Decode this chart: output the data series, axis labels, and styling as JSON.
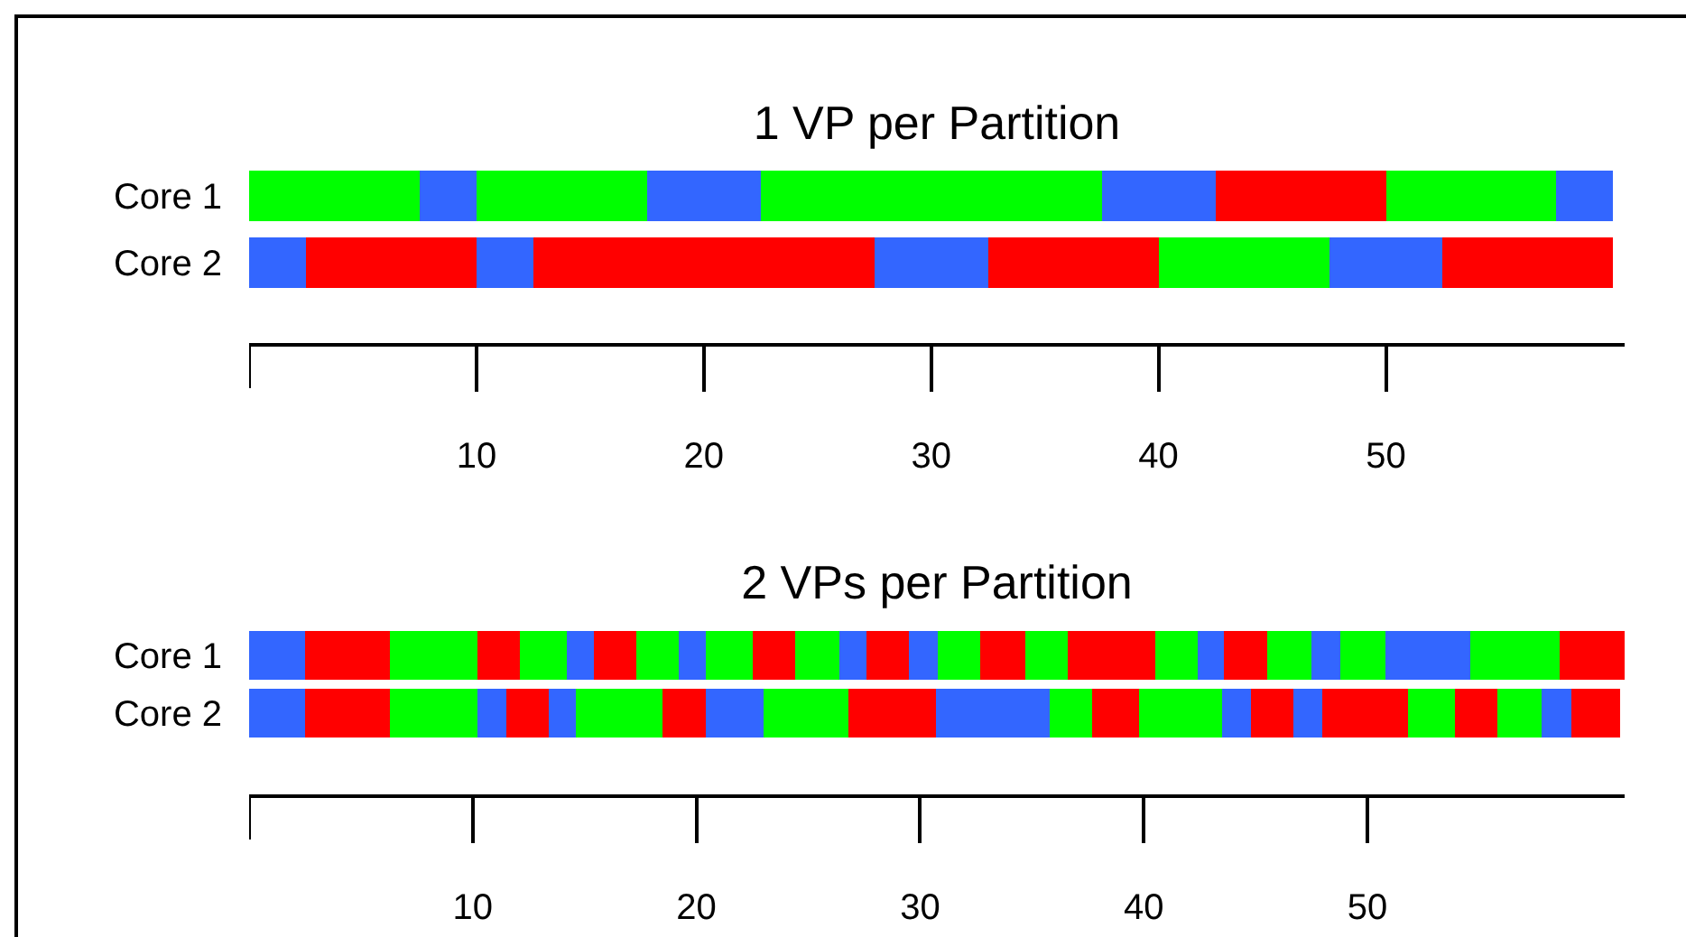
{
  "chart_data": [
    {
      "type": "bar",
      "title": "1 VP per Partition",
      "orientation": "horizontal",
      "stacked": true,
      "categories": [
        "Core 1",
        "Core 2"
      ],
      "xlim": [
        0,
        60.5
      ],
      "xticks": [
        10,
        20,
        30,
        40,
        50
      ],
      "grid": false,
      "series": [
        {
          "values": [
            7.5,
            2.5
          ],
          "colors": [
            "#00ff00",
            "#3366ff"
          ]
        },
        {
          "values": [
            2.5,
            7.5
          ],
          "colors": [
            "#3366ff",
            "#ff0000"
          ]
        },
        {
          "values": [
            7.5,
            2.5
          ],
          "colors": [
            "#00ff00",
            "#3366ff"
          ]
        },
        {
          "values": [
            5,
            15
          ],
          "colors": [
            "#3366ff",
            "#ff0000"
          ]
        },
        {
          "values": [
            15,
            5
          ],
          "colors": [
            "#00ff00",
            "#3366ff"
          ]
        },
        {
          "values": [
            5,
            7.5
          ],
          "colors": [
            "#3366ff",
            "#ff0000"
          ]
        },
        {
          "values": [
            7.5,
            7.5
          ],
          "colors": [
            "#ff0000",
            "#00ff00"
          ]
        },
        {
          "values": [
            7.5,
            5
          ],
          "colors": [
            "#00ff00",
            "#3366ff"
          ]
        },
        {
          "values": [
            2.5,
            7.5
          ],
          "colors": [
            "#3366ff",
            "#ff0000"
          ]
        }
      ]
    },
    {
      "type": "bar",
      "title": "2 VPs per Partition",
      "orientation": "horizontal",
      "stacked": true,
      "categories": [
        "Core 1",
        "Core 2"
      ],
      "xlim": [
        0,
        61.5
      ],
      "xticks": [
        10,
        20,
        30,
        40,
        50
      ],
      "grid": false,
      "series": [
        {
          "values": [
            2.5,
            2.5
          ],
          "colors": [
            "#3366ff",
            "#3366ff"
          ]
        },
        {
          "values": [
            3.8,
            3.8
          ],
          "colors": [
            "#ff0000",
            "#ff0000"
          ]
        },
        {
          "values": [
            3.9,
            3.9
          ],
          "colors": [
            "#00ff00",
            "#00ff00"
          ]
        },
        {
          "values": [
            1.9,
            1.3
          ],
          "colors": [
            "#ff0000",
            "#3366ff"
          ]
        },
        {
          "values": [
            2.1,
            1.9
          ],
          "colors": [
            "#00ff00",
            "#ff0000"
          ]
        },
        {
          "values": [
            1.2,
            1.2
          ],
          "colors": [
            "#3366ff",
            "#3366ff"
          ]
        },
        {
          "values": [
            1.9,
            3.9
          ],
          "colors": [
            "#ff0000",
            "#00ff00"
          ]
        },
        {
          "values": [
            1.9,
            1.9
          ],
          "colors": [
            "#00ff00",
            "#ff0000"
          ]
        },
        {
          "values": [
            1.2,
            2.6
          ],
          "colors": [
            "#3366ff",
            "#3366ff"
          ]
        },
        {
          "values": [
            2.1,
            3.8
          ],
          "colors": [
            "#00ff00",
            "#00ff00"
          ]
        },
        {
          "values": [
            1.9,
            3.9
          ],
          "colors": [
            "#ff0000",
            "#ff0000"
          ]
        },
        {
          "values": [
            2.0,
            5.1
          ],
          "colors": [
            "#00ff00",
            "#3366ff"
          ]
        },
        {
          "values": [
            1.2,
            1.9
          ],
          "colors": [
            "#3366ff",
            "#00ff00"
          ]
        },
        {
          "values": [
            1.9,
            2.1
          ],
          "colors": [
            "#ff0000",
            "#ff0000"
          ]
        },
        {
          "values": [
            1.3,
            3.7
          ],
          "colors": [
            "#3366ff",
            "#00ff00"
          ]
        },
        {
          "values": [
            1.9,
            1.3
          ],
          "colors": [
            "#00ff00",
            "#3366ff"
          ]
        },
        {
          "values": [
            2.0,
            1.9
          ],
          "colors": [
            "#ff0000",
            "#ff0000"
          ]
        },
        {
          "values": [
            1.9,
            1.3
          ],
          "colors": [
            "#00ff00",
            "#3366ff"
          ]
        },
        {
          "values": [
            3.9,
            3.8
          ],
          "colors": [
            "#ff0000",
            "#ff0000"
          ]
        },
        {
          "values": [
            1.9,
            2.1
          ],
          "colors": [
            "#00ff00",
            "#00ff00"
          ]
        },
        {
          "values": [
            1.2,
            1.9
          ],
          "colors": [
            "#3366ff",
            "#ff0000"
          ]
        },
        {
          "values": [
            1.9,
            2.0
          ],
          "colors": [
            "#ff0000",
            "#00ff00"
          ]
        },
        {
          "values": [
            2.0,
            1.3
          ],
          "colors": [
            "#00ff00",
            "#3366ff"
          ]
        },
        {
          "values": [
            1.3,
            2.2
          ],
          "colors": [
            "#3366ff",
            "#ff0000"
          ]
        },
        {
          "values": [
            2.0,
            null
          ],
          "colors": [
            "#00ff00",
            "#ff0000"
          ]
        },
        {
          "values": [
            3.8,
            null
          ],
          "colors": [
            "#3366ff",
            "#ff0000"
          ]
        },
        {
          "values": [
            4.0,
            null
          ],
          "colors": [
            "#00ff00",
            "#ff0000"
          ]
        },
        {
          "values": [
            2.9,
            null
          ],
          "colors": [
            "#ff0000",
            "#ff0000"
          ]
        }
      ]
    }
  ]
}
